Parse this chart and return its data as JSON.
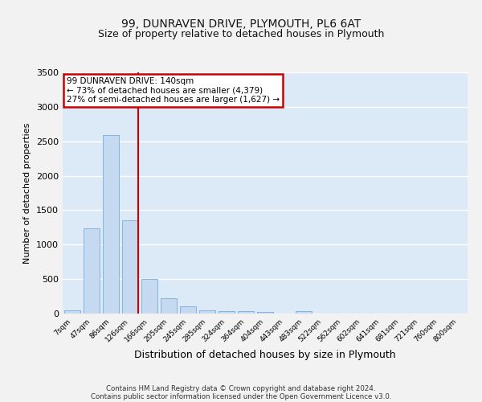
{
  "title": "99, DUNRAVEN DRIVE, PLYMOUTH, PL6 6AT",
  "subtitle": "Size of property relative to detached houses in Plymouth",
  "xlabel": "Distribution of detached houses by size in Plymouth",
  "ylabel": "Number of detached properties",
  "bar_labels": [
    "7sqm",
    "47sqm",
    "86sqm",
    "126sqm",
    "166sqm",
    "205sqm",
    "245sqm",
    "285sqm",
    "324sqm",
    "364sqm",
    "404sqm",
    "443sqm",
    "483sqm",
    "522sqm",
    "562sqm",
    "602sqm",
    "641sqm",
    "681sqm",
    "721sqm",
    "760sqm",
    "800sqm"
  ],
  "bar_values": [
    50,
    1240,
    2590,
    1350,
    500,
    220,
    110,
    45,
    40,
    30,
    20,
    0,
    30,
    0,
    0,
    0,
    0,
    0,
    0,
    0,
    0
  ],
  "bar_color": "#c5d9f0",
  "bar_edgecolor": "#7aabdb",
  "fig_bg_color": "#f2f2f2",
  "plot_bg_color": "#dce9f7",
  "grid_color": "#ffffff",
  "ylim": [
    0,
    3500
  ],
  "yticks": [
    0,
    500,
    1000,
    1500,
    2000,
    2500,
    3000,
    3500
  ],
  "property_line_color": "#cc0000",
  "red_line_x": 3.4,
  "annotation_title": "99 DUNRAVEN DRIVE: 140sqm",
  "annotation_line1": "← 73% of detached houses are smaller (4,379)",
  "annotation_line2": "27% of semi-detached houses are larger (1,627) →",
  "annotation_box_facecolor": "#ffffff",
  "annotation_box_edgecolor": "#cc0000",
  "footnote1": "Contains HM Land Registry data © Crown copyright and database right 2024.",
  "footnote2": "Contains public sector information licensed under the Open Government Licence v3.0."
}
